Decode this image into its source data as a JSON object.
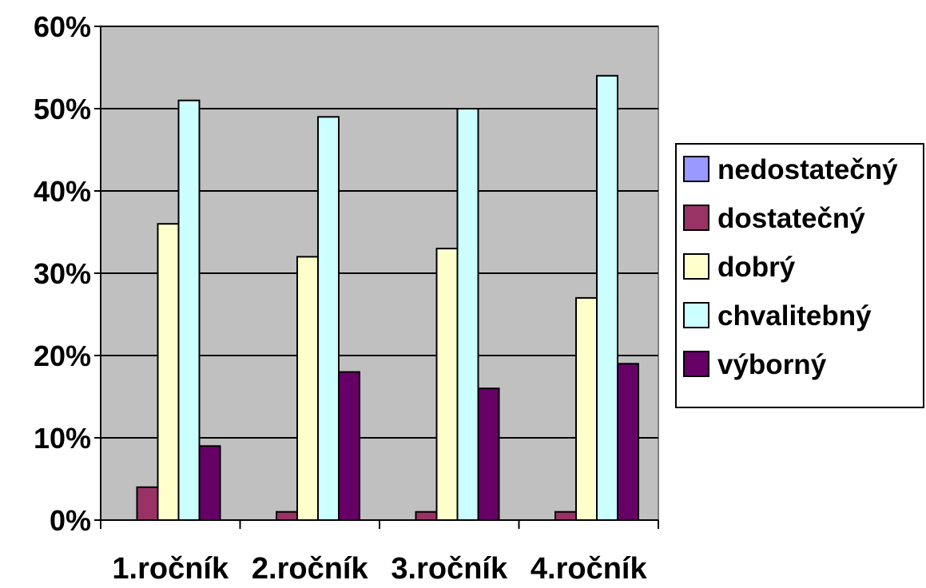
{
  "chart_data": {
    "type": "bar",
    "title": "",
    "xlabel": "",
    "ylabel": "",
    "categories": [
      "1.ročník",
      "2.ročník",
      "3.ročník",
      "4.ročník"
    ],
    "series": [
      {
        "name": "nedostatečný",
        "color": "#9999ff",
        "values": [
          0,
          0,
          0,
          0
        ]
      },
      {
        "name": "dostatečný",
        "color": "#993366",
        "values": [
          4,
          1,
          1,
          1
        ]
      },
      {
        "name": "dobrý",
        "color": "#ffffcc",
        "values": [
          36,
          32,
          33,
          27
        ]
      },
      {
        "name": "chvalitebný",
        "color": "#ccffff",
        "values": [
          51,
          49,
          50,
          54
        ]
      },
      {
        "name": "výborný",
        "color": "#660066",
        "values": [
          9,
          18,
          16,
          19
        ]
      }
    ],
    "ylim": [
      0,
      60
    ],
    "yticks": [
      0,
      10,
      20,
      30,
      40,
      50,
      60
    ],
    "ytick_labels": [
      "0%",
      "10%",
      "20%",
      "30%",
      "40%",
      "50%",
      "60%"
    ],
    "grid": true,
    "plot_background": "#c0c0c0",
    "legend_position": "right"
  }
}
